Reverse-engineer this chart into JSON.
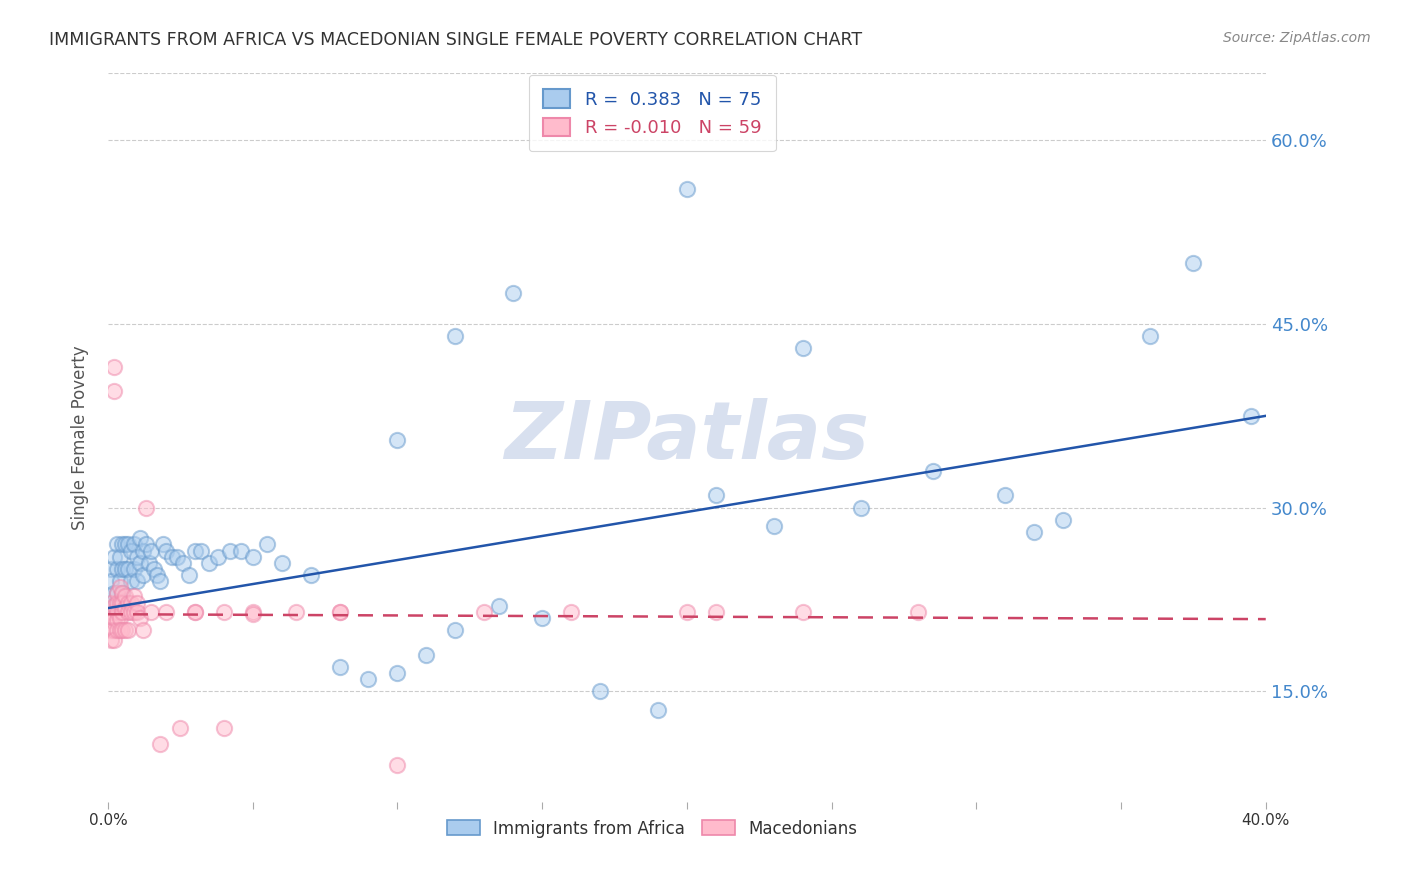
{
  "title": "IMMIGRANTS FROM AFRICA VS MACEDONIAN SINGLE FEMALE POVERTY CORRELATION CHART",
  "source": "Source: ZipAtlas.com",
  "ylabel": "Single Female Poverty",
  "yticks_right": [
    0.15,
    0.3,
    0.45,
    0.6
  ],
  "ytick_labels_right": [
    "15.0%",
    "30.0%",
    "45.0%",
    "60.0%"
  ],
  "xlim": [
    0.0,
    0.4
  ],
  "ylim": [
    0.06,
    0.655
  ],
  "watermark": "ZIPatlas",
  "blue_scatter_x": [
    0.001,
    0.001,
    0.002,
    0.002,
    0.002,
    0.003,
    0.003,
    0.003,
    0.003,
    0.004,
    0.004,
    0.004,
    0.005,
    0.005,
    0.005,
    0.006,
    0.006,
    0.007,
    0.007,
    0.008,
    0.008,
    0.009,
    0.009,
    0.01,
    0.01,
    0.011,
    0.011,
    0.012,
    0.012,
    0.013,
    0.014,
    0.015,
    0.016,
    0.017,
    0.018,
    0.019,
    0.02,
    0.022,
    0.024,
    0.026,
    0.028,
    0.03,
    0.032,
    0.035,
    0.038,
    0.042,
    0.046,
    0.05,
    0.055,
    0.06,
    0.07,
    0.08,
    0.09,
    0.1,
    0.11,
    0.12,
    0.135,
    0.15,
    0.17,
    0.19,
    0.21,
    0.23,
    0.26,
    0.285,
    0.31,
    0.33,
    0.36,
    0.375,
    0.395,
    0.1,
    0.12,
    0.14,
    0.2,
    0.24,
    0.32
  ],
  "blue_scatter_y": [
    0.25,
    0.24,
    0.26,
    0.23,
    0.22,
    0.27,
    0.25,
    0.23,
    0.22,
    0.26,
    0.24,
    0.22,
    0.27,
    0.25,
    0.23,
    0.27,
    0.25,
    0.27,
    0.25,
    0.265,
    0.24,
    0.27,
    0.25,
    0.26,
    0.24,
    0.275,
    0.255,
    0.265,
    0.245,
    0.27,
    0.255,
    0.265,
    0.25,
    0.245,
    0.24,
    0.27,
    0.265,
    0.26,
    0.26,
    0.255,
    0.245,
    0.265,
    0.265,
    0.255,
    0.26,
    0.265,
    0.265,
    0.26,
    0.27,
    0.255,
    0.245,
    0.17,
    0.16,
    0.165,
    0.18,
    0.2,
    0.22,
    0.21,
    0.15,
    0.135,
    0.31,
    0.285,
    0.3,
    0.33,
    0.31,
    0.29,
    0.44,
    0.5,
    0.375,
    0.355,
    0.44,
    0.475,
    0.56,
    0.43,
    0.28
  ],
  "pink_scatter_x": [
    0.001,
    0.001,
    0.001,
    0.001,
    0.001,
    0.002,
    0.002,
    0.002,
    0.002,
    0.002,
    0.002,
    0.003,
    0.003,
    0.003,
    0.003,
    0.003,
    0.004,
    0.004,
    0.004,
    0.004,
    0.005,
    0.005,
    0.005,
    0.005,
    0.006,
    0.006,
    0.006,
    0.007,
    0.007,
    0.007,
    0.008,
    0.008,
    0.009,
    0.009,
    0.01,
    0.01,
    0.011,
    0.012,
    0.013,
    0.015,
    0.018,
    0.02,
    0.025,
    0.03,
    0.04,
    0.05,
    0.065,
    0.08,
    0.1,
    0.13,
    0.16,
    0.2,
    0.24,
    0.28,
    0.03,
    0.04,
    0.05,
    0.08,
    0.21
  ],
  "pink_scatter_y": [
    0.222,
    0.215,
    0.208,
    0.2,
    0.192,
    0.395,
    0.415,
    0.22,
    0.21,
    0.2,
    0.192,
    0.23,
    0.222,
    0.215,
    0.208,
    0.2,
    0.235,
    0.222,
    0.21,
    0.2,
    0.23,
    0.222,
    0.215,
    0.2,
    0.228,
    0.218,
    0.2,
    0.222,
    0.215,
    0.2,
    0.222,
    0.215,
    0.228,
    0.215,
    0.222,
    0.215,
    0.21,
    0.2,
    0.3,
    0.215,
    0.107,
    0.215,
    0.12,
    0.215,
    0.215,
    0.215,
    0.215,
    0.215,
    0.09,
    0.215,
    0.215,
    0.215,
    0.215,
    0.215,
    0.215,
    0.12,
    0.213,
    0.215,
    0.215
  ],
  "blue_line_x": [
    0.0,
    0.4
  ],
  "blue_line_y": [
    0.218,
    0.375
  ],
  "pink_line_x": [
    0.0,
    0.4
  ],
  "pink_line_y": [
    0.213,
    0.209
  ],
  "blue_fill_color": "#aaccee",
  "blue_edge_color": "#6699cc",
  "pink_fill_color": "#ffbbcc",
  "pink_edge_color": "#ee88aa",
  "blue_line_color": "#2255aa",
  "pink_line_color": "#cc4466",
  "background_color": "#ffffff",
  "grid_color": "#cccccc",
  "title_color": "#333333",
  "axis_label_color": "#555555",
  "right_axis_color": "#4488cc",
  "marker_size": 120,
  "marker_alpha": 0.5,
  "marker_edge_width": 1.5,
  "line_width": 1.8
}
